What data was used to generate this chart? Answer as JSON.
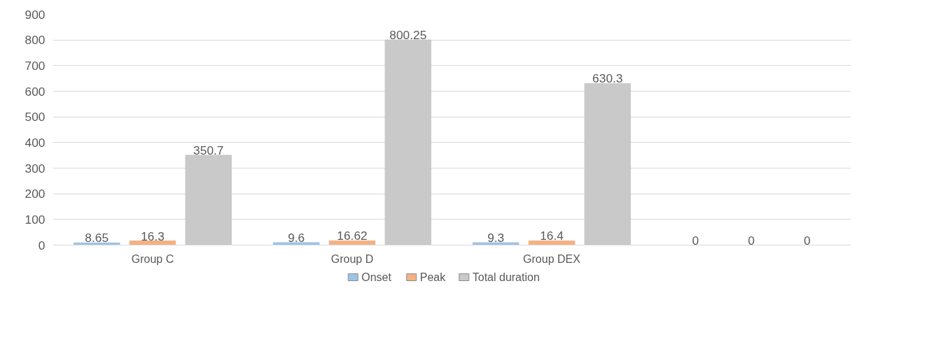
{
  "chart_data": {
    "type": "bar",
    "categories": [
      "Group C",
      "Group D",
      "Group DEX",
      null
    ],
    "series": [
      {
        "name": "Onset",
        "color": "#9dc3e6",
        "values": [
          8.65,
          9.6,
          9.3,
          0
        ]
      },
      {
        "name": "Peak",
        "color": "#f4b183",
        "values": [
          16.3,
          16.62,
          16.4,
          0
        ]
      },
      {
        "name": "Total duration",
        "color": "#c9c9c9",
        "values": [
          350.7,
          800.25,
          630.3,
          0
        ]
      }
    ],
    "ylim": [
      0,
      900
    ],
    "yticks": [
      0,
      100,
      200,
      300,
      400,
      500,
      600,
      700,
      800,
      900
    ],
    "grid": "y",
    "legend": "bottom",
    "data_labels": true
  }
}
